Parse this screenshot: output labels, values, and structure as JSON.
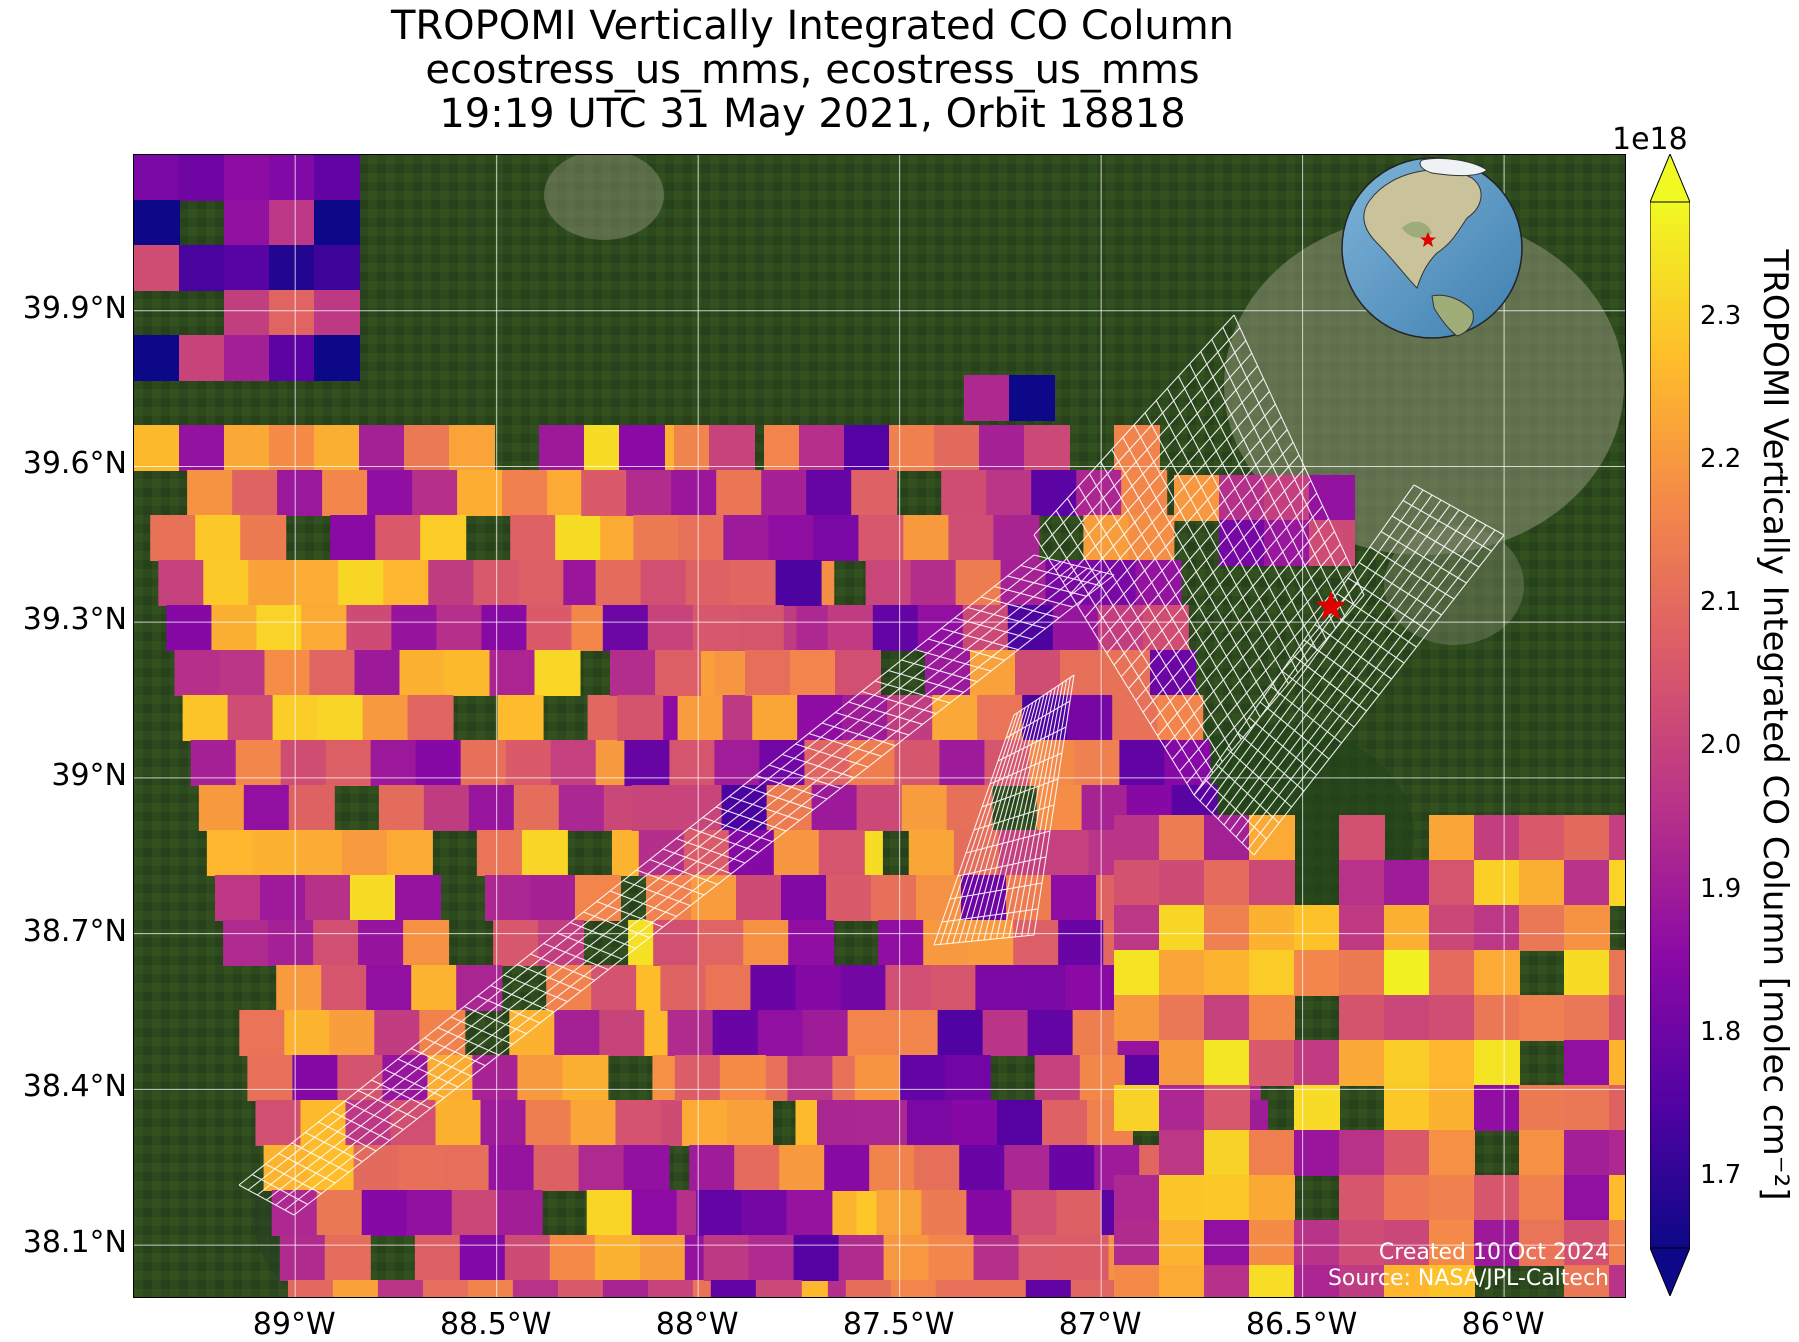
{
  "title": {
    "line1": "TROPOMI Vertically Integrated CO Column",
    "line2": "ecostress_us_mms, ecostress_us_mms",
    "line3": "19:19 UTC 31 May 2021, Orbit 18818"
  },
  "map": {
    "projection": "lat-lon",
    "extent": {
      "lon_min": -89.4,
      "lon_max": -85.7,
      "lat_min": 38.0,
      "lat_max": 40.2
    },
    "lat_ticks": [
      {
        "value": 39.9,
        "label": "39.9°N"
      },
      {
        "value": 39.6,
        "label": "39.6°N"
      },
      {
        "value": 39.3,
        "label": "39.3°N"
      },
      {
        "value": 39.0,
        "label": "39°N"
      },
      {
        "value": 38.7,
        "label": "38.7°N"
      },
      {
        "value": 38.4,
        "label": "38.4°N"
      },
      {
        "value": 38.1,
        "label": "38.1°N"
      }
    ],
    "lon_ticks": [
      {
        "value": -89.0,
        "label": "89°W"
      },
      {
        "value": -88.5,
        "label": "88.5°W"
      },
      {
        "value": -88.0,
        "label": "88°W"
      },
      {
        "value": -87.5,
        "label": "87.5°W"
      },
      {
        "value": -87.0,
        "label": "87°W"
      },
      {
        "value": -86.5,
        "label": "86.5°W"
      },
      {
        "value": -86.0,
        "label": "86°W"
      }
    ],
    "grid": true,
    "basemap": "satellite imagery",
    "site_marker": {
      "lon": -86.43,
      "lat": 39.33,
      "symbol": "star",
      "color": "#e00000"
    },
    "inset_globe": {
      "position": "top-right",
      "marker": "red star"
    },
    "target_footprint": "white grid outline"
  },
  "colorbar": {
    "label": "TROPOMI Vertically Integrated CO Column [molec cm⁻²]",
    "exponent": "1e18",
    "colormap": "plasma",
    "min": 1.65,
    "max": 2.38,
    "extend": "both",
    "ticks": [
      "1.7",
      "1.8",
      "1.9",
      "2.0",
      "2.1",
      "2.2",
      "2.3"
    ],
    "tick_values": [
      1.7,
      1.8,
      1.9,
      2.0,
      2.1,
      2.2,
      2.3
    ]
  },
  "credits": {
    "line1": "Created 10 Oct 2024",
    "line2": "Source: NASA/JPL-Caltech"
  }
}
